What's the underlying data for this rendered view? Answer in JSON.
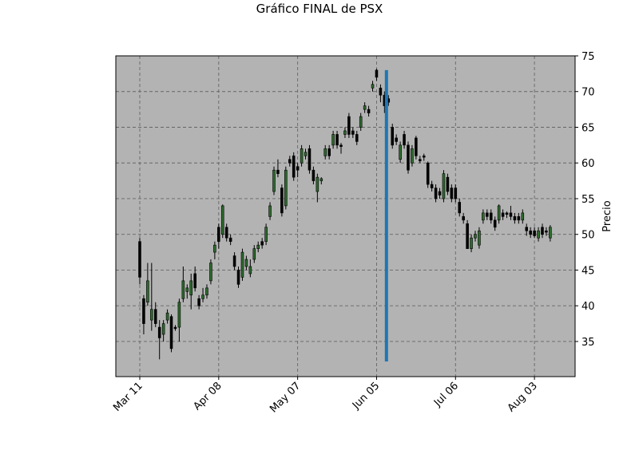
{
  "chart_data": {
    "type": "candlestick",
    "title": "Gráfico FINAL de PSX",
    "y_label": "Precio",
    "categories": [
      "Mar 11",
      null,
      null,
      null,
      null,
      null,
      null,
      null,
      null,
      null,
      null,
      null,
      null,
      null,
      null,
      null,
      null,
      null,
      null,
      null,
      "Apr 08",
      null,
      null,
      null,
      null,
      null,
      null,
      null,
      null,
      null,
      null,
      null,
      null,
      null,
      null,
      null,
      null,
      null,
      null,
      null,
      "May 07",
      null,
      null,
      null,
      null,
      null,
      null,
      null,
      null,
      null,
      null,
      null,
      null,
      null,
      null,
      null,
      null,
      null,
      null,
      null,
      "Jun 05",
      null,
      null,
      null,
      null,
      null,
      null,
      null,
      null,
      null,
      null,
      null,
      null,
      null,
      null,
      null,
      null,
      null,
      null,
      null,
      "Jul 06",
      null,
      null,
      null,
      null,
      null,
      null,
      null,
      null,
      null,
      null,
      null,
      null,
      null,
      null,
      null,
      null,
      null,
      null,
      null,
      "Aug 03",
      null,
      null,
      null,
      null
    ],
    "open": [
      49,
      41,
      40.5,
      38,
      39.5,
      37,
      36,
      38,
      38.5,
      37,
      37,
      41,
      42,
      41.5,
      44.5,
      41,
      41,
      41.5,
      43.5,
      47.5,
      51,
      50,
      51,
      49.5,
      47,
      45,
      44,
      45.5,
      44.5,
      46.5,
      48,
      49,
      49,
      52.5,
      56,
      59,
      56.5,
      54,
      60.5,
      61,
      59.5,
      60,
      61,
      62,
      59,
      56,
      57.5,
      61,
      62,
      62.5,
      64,
      62.5,
      64,
      66.5,
      64.5,
      64,
      65,
      67.5,
      67.5,
      70.5,
      73,
      70.5,
      69.5,
      69,
      65,
      63.5,
      60.5,
      64,
      62.5,
      60,
      63.5,
      60.5,
      61,
      60,
      57,
      56.5,
      56,
      55,
      58,
      56.5,
      56.5,
      54.5,
      52.5,
      51.5,
      48,
      49.5,
      48.5,
      52,
      53,
      53,
      52,
      52,
      53,
      53,
      53,
      52.5,
      52.5,
      52,
      51,
      50.5,
      50.5,
      49.5,
      51,
      50.5,
      49.5
    ],
    "high": [
      49.5,
      41.5,
      46,
      46,
      40.5,
      38,
      38,
      39.5,
      38.8,
      37.3,
      41,
      45.5,
      43,
      44.5,
      45.5,
      41.5,
      42.5,
      43,
      46.5,
      49,
      51.5,
      54.2,
      51.5,
      50,
      47.5,
      45.5,
      48,
      47,
      46.5,
      48.5,
      49,
      49.5,
      51.5,
      54.5,
      59.5,
      60.5,
      57,
      59.5,
      61,
      61.5,
      60,
      62.5,
      62,
      62.5,
      59.5,
      58.5,
      58,
      62.5,
      62.5,
      64.5,
      64.5,
      62.8,
      65,
      67,
      65,
      64.5,
      67,
      68.5,
      68,
      71.5,
      73.2,
      71,
      70,
      69.5,
      65.5,
      64,
      63,
      64.5,
      63,
      62.5,
      63.8,
      61,
      61.3,
      60.2,
      57.5,
      57,
      56.5,
      59,
      58.5,
      57,
      57,
      55,
      53,
      52,
      50,
      50.5,
      51,
      53.5,
      53.5,
      53.5,
      52.5,
      54.2,
      53.5,
      53.2,
      54,
      53,
      53,
      53.5,
      51.5,
      51,
      51,
      51,
      51.5,
      51,
      51.3
    ],
    "low": [
      43,
      36,
      40,
      36.5,
      37,
      32.5,
      35,
      37.5,
      33.5,
      36.5,
      35,
      40.5,
      41,
      39.5,
      42,
      39.5,
      40.5,
      41,
      43,
      46.5,
      48,
      49.5,
      49,
      48.5,
      45,
      42.5,
      43.5,
      45,
      44,
      46,
      47.5,
      48,
      48.5,
      52,
      55.5,
      58,
      52.5,
      53.5,
      59.5,
      57.5,
      58,
      59.5,
      60.5,
      58.5,
      57,
      54.5,
      57,
      60.5,
      60.5,
      62,
      62,
      61.3,
      63.5,
      63.5,
      63.5,
      62.5,
      64.5,
      67,
      66.5,
      70,
      71.5,
      68.5,
      67,
      68,
      62,
      62.5,
      60,
      62,
      58.5,
      59.5,
      60.5,
      60,
      60.3,
      56.5,
      56,
      54.5,
      55,
      54.5,
      55.5,
      54.5,
      54.5,
      52.5,
      51.5,
      48,
      47.5,
      49,
      48,
      51.5,
      52,
      51.5,
      50.5,
      51.5,
      52,
      52.3,
      52,
      51.5,
      51.5,
      51.5,
      49.8,
      49.5,
      49.5,
      49,
      49.5,
      49.8,
      49
    ],
    "close": [
      44,
      37.5,
      43.5,
      39.5,
      37.5,
      35.5,
      37.5,
      39,
      34,
      36.8,
      40.5,
      43.5,
      42.5,
      43.5,
      42.5,
      40,
      41.5,
      42.5,
      46,
      48.5,
      49,
      54,
      49.5,
      49,
      45.5,
      43,
      47.5,
      46.5,
      45.5,
      48,
      48.5,
      48.5,
      51,
      54,
      59,
      58.5,
      53,
      59,
      60,
      58,
      59,
      62,
      61.5,
      59,
      57.5,
      58,
      57.8,
      62,
      61,
      64,
      62.5,
      62.3,
      64.5,
      64,
      64,
      63,
      66.5,
      68,
      67,
      71,
      72,
      69.5,
      68,
      68.5,
      62.5,
      63,
      62.5,
      62.5,
      59,
      62,
      61,
      60.3,
      60.8,
      57,
      56.5,
      55,
      55.5,
      58.5,
      56,
      55,
      55,
      53,
      52,
      48,
      49.5,
      50,
      50.5,
      53,
      52.5,
      52,
      51,
      54,
      52.5,
      52.8,
      52.5,
      52,
      52,
      53,
      50.5,
      50,
      49.8,
      50.5,
      50,
      50.3,
      51
    ],
    "up_color": "#2e6b2e",
    "down_color": "#000000",
    "vline": {
      "x": 62.5,
      "ymin": 32.2,
      "ymax": 73,
      "color": "#1f77b4"
    },
    "xlim": [
      -6.07,
      110.3
    ],
    "ylim": [
      30.08,
      75
    ],
    "yticks": [
      35,
      40,
      45,
      50,
      55,
      60,
      65,
      70,
      75
    ],
    "grid": true,
    "background": "#b3b3b3"
  }
}
